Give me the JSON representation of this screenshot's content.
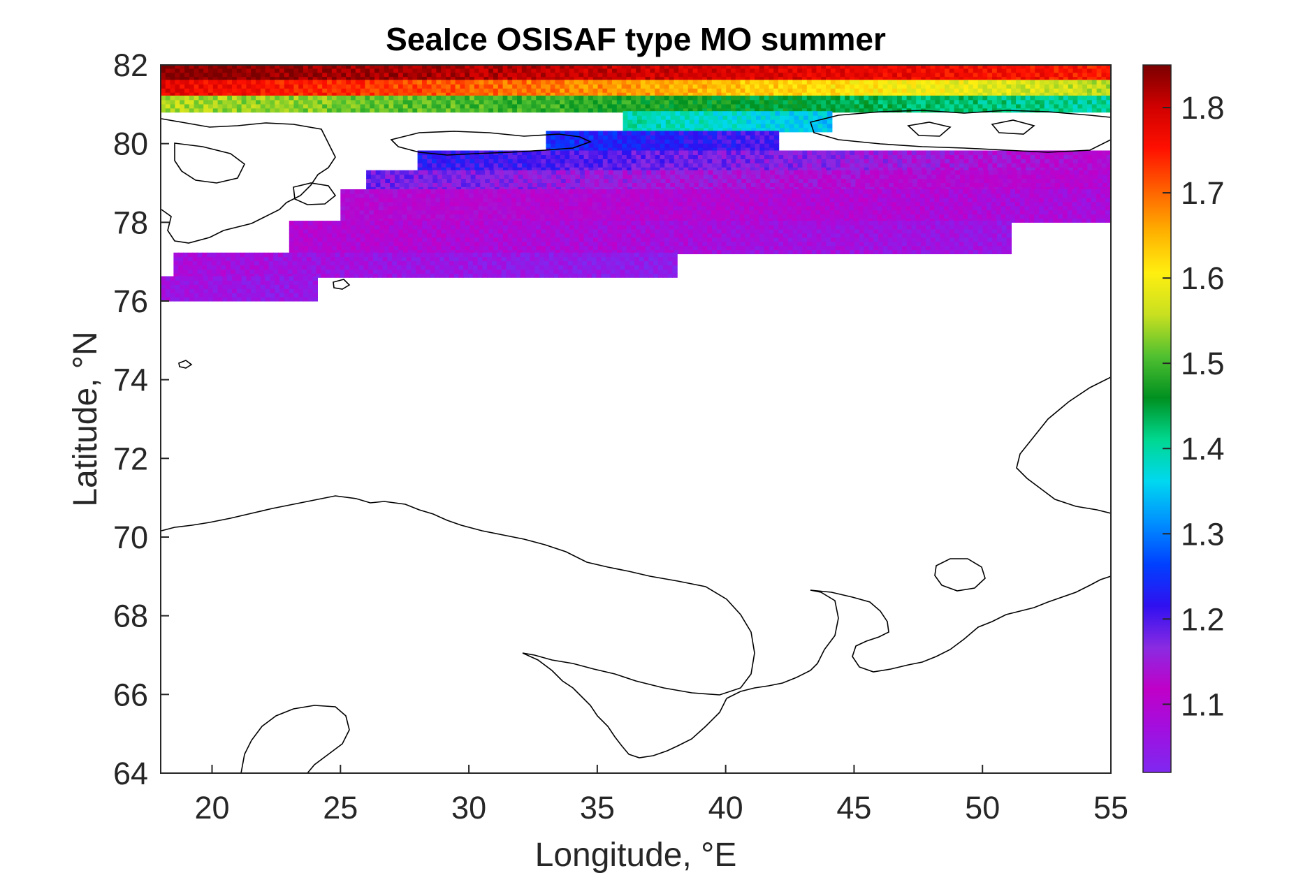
{
  "chart_data": {
    "type": "heatmap",
    "title": "SeaIce OSISAF type MO summer",
    "xlabel": "Longitude, °E",
    "ylabel": "Latitude, °N",
    "xlim": [
      18,
      55
    ],
    "ylim": [
      64,
      82
    ],
    "x_ticks": [
      "20",
      "25",
      "30",
      "35",
      "40",
      "45",
      "50",
      "55"
    ],
    "y_ticks": [
      "64",
      "66",
      "68",
      "70",
      "72",
      "74",
      "76",
      "78",
      "80",
      "82"
    ],
    "colorbar": {
      "range": [
        1.02,
        1.85
      ],
      "ticks": [
        "1.1",
        "1.2",
        "1.3",
        "1.4",
        "1.5",
        "1.6",
        "1.7",
        "1.8"
      ],
      "colormap": "rainbow",
      "colors": [
        "#7f28f0",
        "#a010e0",
        "#c000c8",
        "#8a2be2",
        "#3010f0",
        "#0040ff",
        "#0090ff",
        "#00d8f0",
        "#00d890",
        "#009020",
        "#50c030",
        "#c8e020",
        "#ffef10",
        "#ffb000",
        "#ff6000",
        "#ff1000",
        "#d00000",
        "#7a0000"
      ]
    },
    "ice_field": {
      "description_free": true,
      "rows": [
        {
          "lat_min": 81.6,
          "lat_max": 82.0,
          "lon_min": 18.0,
          "lon_max": 55.0,
          "value_west": 1.85,
          "value_east": 1.75
        },
        {
          "lat_min": 81.2,
          "lat_max": 81.6,
          "lon_min": 18.0,
          "lon_max": 55.0,
          "value_west": 1.78,
          "value_east": 1.55
        },
        {
          "lat_min": 80.8,
          "lat_max": 81.2,
          "lon_min": 18.0,
          "lon_max": 55.0,
          "value_west": 1.55,
          "value_east": 1.4
        },
        {
          "lat_min": 80.3,
          "lat_max": 80.8,
          "lon_min": 36.0,
          "lon_max": 44.0,
          "value_west": 1.4,
          "value_east": 1.35
        },
        {
          "lat_min": 79.8,
          "lat_max": 80.3,
          "lon_min": 33.0,
          "lon_max": 42.0,
          "value_west": 1.25,
          "value_east": 1.2
        },
        {
          "lat_min": 79.3,
          "lat_max": 79.8,
          "lon_min": 28.0,
          "lon_max": 55.0,
          "value_west": 1.22,
          "value_east": 1.12
        },
        {
          "lat_min": 78.8,
          "lat_max": 79.3,
          "lon_min": 26.0,
          "lon_max": 55.0,
          "value_west": 1.18,
          "value_east": 1.1
        },
        {
          "lat_min": 78.0,
          "lat_max": 78.8,
          "lon_min": 25.0,
          "lon_max": 55.0,
          "value_west": 1.12,
          "value_east": 1.08
        },
        {
          "lat_min": 77.2,
          "lat_max": 78.0,
          "lon_min": 23.0,
          "lon_max": 51.0,
          "value_west": 1.1,
          "value_east": 1.06
        },
        {
          "lat_min": 76.6,
          "lat_max": 77.2,
          "lon_min": 18.5,
          "lon_max": 38.0,
          "value_west": 1.08,
          "value_east": 1.04
        },
        {
          "lat_min": 76.0,
          "lat_max": 76.6,
          "lon_min": 18.0,
          "lon_max": 24.0,
          "value_west": 1.07,
          "value_east": 1.05
        }
      ]
    }
  }
}
